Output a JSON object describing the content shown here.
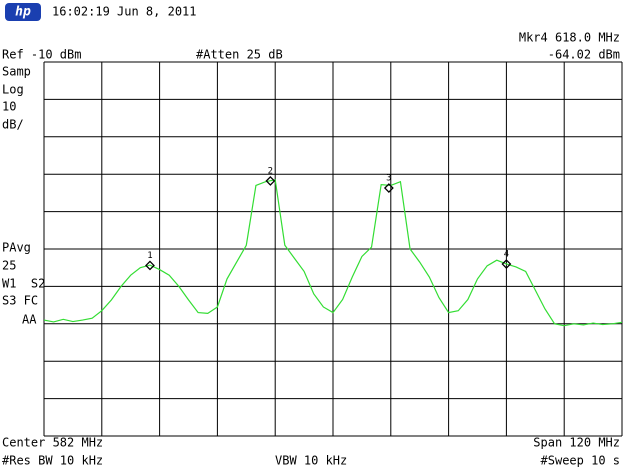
{
  "header": {
    "logo": "hp",
    "timestamp": "16:02:19  Jun 8, 2011"
  },
  "chart_data": {
    "type": "line",
    "ref_label": "Ref -10 dBm",
    "atten_label": "#Atten 25 dB",
    "marker_readout": [
      "Mkr4  618.0 MHz",
      "-64.02 dBm"
    ],
    "left_top": [
      "Samp",
      "Log",
      "10",
      "dB/"
    ],
    "left_bottom": [
      "PAvg",
      "25",
      "W1  S2",
      "S3 FC",
      "AA"
    ],
    "footer": {
      "center": "Center 582 MHz",
      "span": "Span 120 MHz",
      "rbw": "#Res BW 10 kHz",
      "vbw": "VBW 10 kHz",
      "sweep": "#Sweep 10 s"
    },
    "xlim": [
      522,
      642
    ],
    "ylim": [
      -110,
      -10
    ],
    "color": "#33dd33",
    "x": [
      522,
      524,
      526,
      528,
      530,
      532,
      534,
      536,
      538,
      540,
      542,
      544,
      546,
      548,
      550,
      552,
      554,
      556,
      558,
      560,
      562,
      564,
      566,
      568,
      570,
      572,
      574,
      576,
      578,
      580,
      582,
      584,
      586,
      588,
      590,
      592,
      594,
      596,
      598,
      600,
      602,
      604,
      606,
      608,
      610,
      612,
      614,
      616,
      618,
      620,
      622,
      624,
      626,
      628,
      630,
      632,
      634,
      636,
      638,
      640,
      642
    ],
    "values": [
      -79,
      -79.5,
      -78.8,
      -79.4,
      -79,
      -78.5,
      -76.5,
      -73.6,
      -70,
      -67,
      -65,
      -64.3,
      -65.5,
      -67,
      -70,
      -73.6,
      -77,
      -77.2,
      -75.5,
      -68,
      -63.5,
      -59,
      -43,
      -42,
      -41.5,
      -59,
      -62.5,
      -66,
      -72,
      -75.5,
      -77,
      -73.5,
      -67.5,
      -62,
      -59.5,
      -42.8,
      -43,
      -42,
      -60,
      -63.5,
      -67.5,
      -73,
      -77,
      -76.5,
      -73.5,
      -68,
      -64.5,
      -63,
      -64,
      -64.8,
      -66,
      -71,
      -76,
      -80,
      -80.5,
      -80,
      -80.3,
      -79.8,
      -80.2,
      -80,
      -79.6
    ],
    "markers": [
      {
        "label": "1",
        "x": 544,
        "y": -64.4
      },
      {
        "label": "2",
        "x": 569,
        "y": -41.8
      },
      {
        "label": "3",
        "x": 593.6,
        "y": -43.7
      },
      {
        "label": "4",
        "x": 618.0,
        "y": -64.02
      }
    ]
  }
}
